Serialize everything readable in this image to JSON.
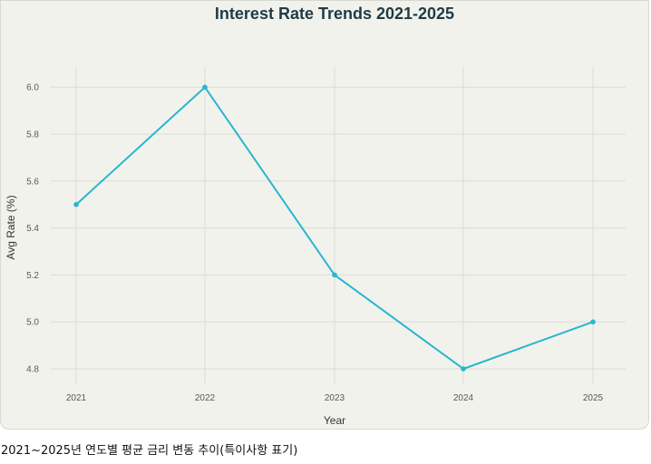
{
  "chart_data": {
    "type": "line",
    "title": "Interest Rate Trends 2021-2025",
    "xlabel": "Year",
    "ylabel": "Avg Rate (%)",
    "categories": [
      "2021",
      "2022",
      "2023",
      "2024",
      "2025"
    ],
    "series": [
      {
        "values": [
          5.5,
          6.0,
          5.2,
          4.8,
          5.0
        ]
      }
    ],
    "ylim": [
      4.7,
      6.1
    ],
    "yticks": [
      "4.8",
      "5.0",
      "5.2",
      "5.4",
      "5.6",
      "5.8",
      "6.0"
    ],
    "grid": true,
    "legend": "none",
    "colors": {
      "line": "#29b6cf",
      "grid": "#dcdcd6",
      "background": "#f2f2ed"
    }
  },
  "caption": "2021~2025년 연도별 평균 금리 변동 추이(특이사항 표기)"
}
